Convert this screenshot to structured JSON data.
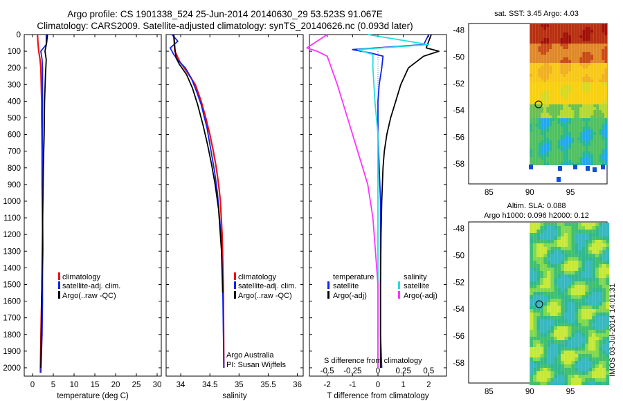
{
  "title": {
    "line1": "Argo profile: CS 1901338_524 25-Jun-2014 20140630_29 53.523S 91.067E",
    "line2": "Climatology: CARS2009. Satellite-adjusted climatology: synTS_20140626.nc (0.093d later)"
  },
  "colors": {
    "clim": "#ee1111",
    "sat": "#1122ee",
    "argo": "#000000",
    "sat_s": "#22dddd",
    "argo_s": "#ff33ff",
    "dotted": "#3366ff"
  },
  "chart_data": [
    {
      "type": "line",
      "name": "temperature",
      "xlabel": "temperature (deg C)",
      "ylabel": "",
      "xlim": [
        -2,
        31
      ],
      "ylim": [
        2050,
        0
      ],
      "xticks": [
        "0",
        "5",
        "10",
        "15",
        "20",
        "25",
        "30"
      ],
      "yticks": [
        "0",
        "100",
        "200",
        "300",
        "400",
        "500",
        "600",
        "700",
        "800",
        "900",
        "1000",
        "1100",
        "1200",
        "1300",
        "1400",
        "1500",
        "1600",
        "1700",
        "1800",
        "1900",
        "2000"
      ],
      "legend": [
        "climatology",
        "satellite-adj. clim.",
        "Argo(..raw -QC)"
      ],
      "series": [
        {
          "name": "climatology",
          "x": [
            1.2,
            1.3,
            1.5,
            1.8,
            2.0,
            2.1,
            2.2,
            2.2,
            2.3,
            2.3,
            2.4,
            2.5,
            2.3,
            2.1,
            2.0,
            1.9,
            1.9
          ],
          "y": [
            0,
            50,
            100,
            150,
            200,
            300,
            400,
            500,
            700,
            900,
            1100,
            1300,
            1500,
            1700,
            1850,
            2000,
            2030
          ]
        },
        {
          "name": "satellite-adj. clim.",
          "x": [
            3.3,
            3.3,
            2.0,
            2.3,
            2.4,
            2.4,
            2.4,
            2.4,
            2.4,
            2.4,
            2.4,
            2.4,
            2.4,
            2.3,
            2.1,
            2.0
          ],
          "y": [
            0,
            60,
            100,
            150,
            200,
            300,
            400,
            600,
            800,
            1000,
            1200,
            1400,
            1600,
            1800,
            1950,
            2030
          ]
        },
        {
          "name": "Argo(..raw -QC)",
          "x": [
            3.6,
            3.4,
            3.0,
            3.3,
            3.1,
            2.9,
            2.8,
            2.6,
            2.5,
            2.4,
            2.3,
            2.2,
            2.1,
            2.0
          ],
          "y": [
            0,
            50,
            100,
            150,
            250,
            400,
            600,
            800,
            1000,
            1200,
            1400,
            1600,
            1800,
            2000
          ]
        }
      ]
    },
    {
      "type": "line",
      "name": "salinity",
      "xlabel": "salinity",
      "xlim": [
        33.75,
        36.1
      ],
      "ylim": [
        2050,
        0
      ],
      "xticks": [
        "34",
        "34.5",
        "35",
        "35.5",
        "36"
      ],
      "legend": [
        "climatology",
        "satellite-adj. clim.",
        "Argo(..raw -QC)"
      ],
      "annotations": [
        "Argo Australia",
        "PI: Susan Wijffels"
      ],
      "series": [
        {
          "name": "climatology",
          "x": [
            33.88,
            33.9,
            33.98,
            34.1,
            34.25,
            34.35,
            34.43,
            34.5,
            34.56,
            34.61,
            34.65,
            34.68,
            34.71,
            34.73,
            34.74
          ],
          "y": [
            0,
            100,
            160,
            220,
            300,
            400,
            500,
            600,
            700,
            800,
            900,
            1000,
            1200,
            1500,
            2000
          ]
        },
        {
          "name": "satellite-adj. clim.",
          "x": [
            33.85,
            33.95,
            33.82,
            33.88,
            33.97,
            34.08,
            34.18,
            34.27,
            34.35,
            34.45,
            34.52,
            34.58,
            34.63,
            34.69,
            34.72,
            34.74
          ],
          "y": [
            0,
            40,
            80,
            120,
            160,
            200,
            260,
            340,
            420,
            560,
            700,
            820,
            950,
            1200,
            1500,
            2000
          ]
        },
        {
          "name": "Argo(..raw -QC)",
          "x": [
            33.88,
            33.9,
            33.92,
            33.98,
            34.1,
            34.2,
            34.29,
            34.38,
            34.46,
            34.53,
            34.59,
            34.65,
            34.7,
            34.72
          ],
          "y": [
            0,
            80,
            140,
            180,
            240,
            320,
            420,
            540,
            660,
            780,
            900,
            1050,
            1300,
            1550
          ]
        }
      ]
    },
    {
      "type": "line",
      "name": "difference",
      "xlabel": "T difference from climatology",
      "xlabel2": "S difference from climatology",
      "xlim": [
        -2.7,
        2.7
      ],
      "ylim": [
        2050,
        0
      ],
      "xticks": [
        "-2",
        "-1",
        "0",
        "1",
        "2"
      ],
      "xticks2": [
        "-0.5",
        "-0.25",
        "0",
        "0.25",
        "0.5"
      ],
      "legend": [
        "temperature",
        "satellite",
        "Argo(-adj)",
        "salinity",
        "satellite",
        "Argo(-adj)"
      ],
      "series": [
        {
          "name": "T satellite",
          "x": [
            2.0,
            1.8,
            -1.0,
            -0.3,
            0.2,
            0.15,
            0.05,
            0.0,
            0.0,
            0.05,
            0.1,
            0.1,
            0.1,
            0.1,
            0.1,
            0.15
          ],
          "y": [
            0,
            60,
            90,
            110,
            130,
            200,
            300,
            400,
            600,
            800,
            1000,
            1200,
            1400,
            1600,
            1800,
            2000
          ]
        },
        {
          "name": "T Argo(-adj)",
          "x": [
            2.1,
            1.9,
            2.4,
            1.8,
            1.2,
            0.9,
            0.7,
            0.5,
            0.35,
            0.25,
            0.2,
            0.15,
            0.12,
            0.1,
            0.1
          ],
          "y": [
            0,
            80,
            100,
            130,
            200,
            300,
            400,
            500,
            600,
            700,
            800,
            1000,
            1200,
            1500,
            2000
          ]
        },
        {
          "name": "S satellite",
          "x": [
            -0.1,
            0.5,
            -0.2,
            -0.05,
            -0.05,
            -0.03,
            0.0,
            0.0,
            0.0,
            0.0,
            0.0,
            0.0
          ],
          "y": [
            0,
            60,
            90,
            120,
            200,
            400,
            600,
            800,
            1000,
            1400,
            1800,
            2000
          ]
        },
        {
          "name": "S Argo(-adj)",
          "x": [
            -0.5,
            -0.7,
            -0.6,
            -0.5,
            -0.4,
            -0.3,
            -0.2,
            -0.1,
            -0.05,
            0.0,
            0.0
          ],
          "y": [
            0,
            80,
            100,
            130,
            300,
            500,
            700,
            900,
            1100,
            1500,
            2000
          ]
        }
      ]
    },
    {
      "type": "heatmap",
      "name": "sst-map",
      "title": "sat. SST: 3.45 Argo: 4.03",
      "xlim": [
        82.5,
        99.5
      ],
      "ylim": [
        -59.5,
        -47.5
      ],
      "xticks": [
        "85",
        "90",
        "95"
      ],
      "yticks": [
        "-48",
        "-50",
        "-52",
        "-54",
        "-56",
        "-58"
      ]
    },
    {
      "type": "heatmap",
      "name": "sla-map",
      "title": "Altim. SLA: 0.088",
      "subtitle": "Argo h1000: 0.096 h2000: 0.12",
      "xlim": [
        82.5,
        99.5
      ],
      "ylim": [
        -59.5,
        -47.5
      ],
      "xticks": [
        "85",
        "90",
        "95"
      ],
      "yticks": [
        "-48",
        "-50",
        "-52",
        "-54",
        "-56",
        "-58"
      ]
    }
  ],
  "stamp": "IMOS 03-Jul-2014 14:01:31"
}
